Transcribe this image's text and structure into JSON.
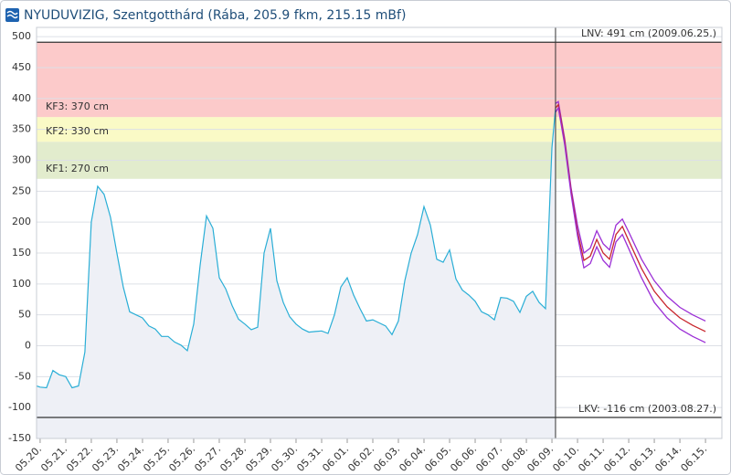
{
  "chart_data": {
    "type": "line",
    "title": "NYUDUVIZIG, Szentgotthárd (Rába, 205.9 fkm, 215.15 mBf)",
    "xlim": [
      -0.14,
      26.64
    ],
    "ylim": [
      -150,
      515
    ],
    "yticks": [
      -150,
      -100,
      -50,
      0,
      50,
      100,
      150,
      200,
      250,
      300,
      350,
      400,
      450,
      500
    ],
    "xticks": [
      {
        "value": 0,
        "label": "05.20."
      },
      {
        "value": 1,
        "label": "05.21."
      },
      {
        "value": 2,
        "label": "05.22."
      },
      {
        "value": 3,
        "label": "05.23."
      },
      {
        "value": 4,
        "label": "05.24."
      },
      {
        "value": 5,
        "label": "05.25."
      },
      {
        "value": 6,
        "label": "05.26."
      },
      {
        "value": 7,
        "label": "05.27."
      },
      {
        "value": 8,
        "label": "05.28."
      },
      {
        "value": 9,
        "label": "05.29."
      },
      {
        "value": 10,
        "label": "05.30."
      },
      {
        "value": 11,
        "label": "05.31."
      },
      {
        "value": 12,
        "label": "06.01."
      },
      {
        "value": 13,
        "label": "06.02."
      },
      {
        "value": 14,
        "label": "06.03."
      },
      {
        "value": 15,
        "label": "06.04."
      },
      {
        "value": 16,
        "label": "06.05."
      },
      {
        "value": 17,
        "label": "06.06."
      },
      {
        "value": 18,
        "label": "06.07."
      },
      {
        "value": 19,
        "label": "06.08."
      },
      {
        "value": 20,
        "label": "06.09."
      },
      {
        "value": 21,
        "label": "06.10."
      },
      {
        "value": 22,
        "label": "06.11."
      },
      {
        "value": 23,
        "label": "06.12."
      },
      {
        "value": 24,
        "label": "06.13."
      },
      {
        "value": 25,
        "label": "06.14."
      },
      {
        "value": 26,
        "label": "06.15."
      }
    ],
    "grid": true,
    "bands": [
      {
        "label": "KF1: 270 cm",
        "from": 270,
        "to": 330,
        "color": "#e2eccd"
      },
      {
        "label": "KF2: 330 cm",
        "from": 330,
        "to": 370,
        "color": "#fafac6"
      },
      {
        "label": "KF3: 370 cm",
        "from": 370,
        "to": 491,
        "color": "#fccaca"
      }
    ],
    "reference_lines": [
      {
        "label": "LNV: 491 cm (2009.06.25.)",
        "value": 491
      },
      {
        "label": "LKV: -116 cm (2003.08.27.)",
        "value": -116
      }
    ],
    "now_x": 20.14,
    "observed": {
      "color": "#2aaed6",
      "fill": "#eef0f6",
      "x": [
        -0.14,
        0,
        0.25,
        0.5,
        0.75,
        1,
        1.25,
        1.5,
        1.75,
        2,
        2.25,
        2.5,
        2.75,
        3,
        3.25,
        3.5,
        3.75,
        4,
        4.25,
        4.5,
        4.75,
        5,
        5.25,
        5.5,
        5.75,
        6,
        6.25,
        6.5,
        6.75,
        7,
        7.25,
        7.5,
        7.75,
        8,
        8.25,
        8.5,
        8.75,
        9,
        9.25,
        9.5,
        9.75,
        10,
        10.25,
        10.5,
        10.75,
        11,
        11.25,
        11.5,
        11.75,
        12,
        12.25,
        12.5,
        12.75,
        13,
        13.25,
        13.5,
        13.75,
        14,
        14.25,
        14.5,
        14.75,
        15,
        15.25,
        15.5,
        15.75,
        16,
        16.25,
        16.5,
        16.75,
        17,
        17.25,
        17.5,
        17.75,
        18,
        18.25,
        18.5,
        18.75,
        19,
        19.25,
        19.5,
        19.75,
        20,
        20.14
      ],
      "values": [
        -65,
        -67,
        -68,
        -40,
        -47,
        -50,
        -68,
        -65,
        -10,
        200,
        258,
        245,
        208,
        150,
        95,
        55,
        50,
        45,
        32,
        27,
        15,
        15,
        6,
        1,
        -8,
        35,
        130,
        210,
        190,
        110,
        92,
        65,
        43,
        35,
        26,
        30,
        150,
        190,
        105,
        70,
        47,
        35,
        27,
        22,
        23,
        24,
        20,
        50,
        95,
        110,
        82,
        60,
        40,
        42,
        37,
        32,
        18,
        40,
        105,
        150,
        180,
        225,
        195,
        140,
        135,
        155,
        108,
        90,
        82,
        72,
        55,
        50,
        42,
        78,
        77,
        72,
        54,
        80,
        88,
        70,
        60,
        320,
        385
      ]
    },
    "forecast": {
      "x": [
        20.15,
        20.25,
        20.5,
        20.75,
        21,
        21.25,
        21.5,
        21.75,
        22,
        22.25,
        22.5,
        22.75,
        23,
        23.5,
        24,
        24.5,
        25,
        25.5,
        26
      ],
      "series": [
        {
          "color": "#9b2fd6",
          "values": [
            392,
            395,
            335,
            255,
            195,
            150,
            158,
            186,
            165,
            155,
            195,
            205,
            184,
            140,
            105,
            80,
            62,
            50,
            40
          ]
        },
        {
          "color": "#c8262d",
          "values": [
            385,
            390,
            330,
            250,
            185,
            138,
            145,
            172,
            150,
            140,
            180,
            193,
            170,
            125,
            88,
            63,
            45,
            33,
            23
          ]
        },
        {
          "color": "#9b2fd6",
          "values": [
            378,
            385,
            325,
            245,
            178,
            126,
            133,
            160,
            138,
            127,
            168,
            180,
            157,
            110,
            70,
            45,
            27,
            15,
            5
          ]
        }
      ]
    }
  }
}
